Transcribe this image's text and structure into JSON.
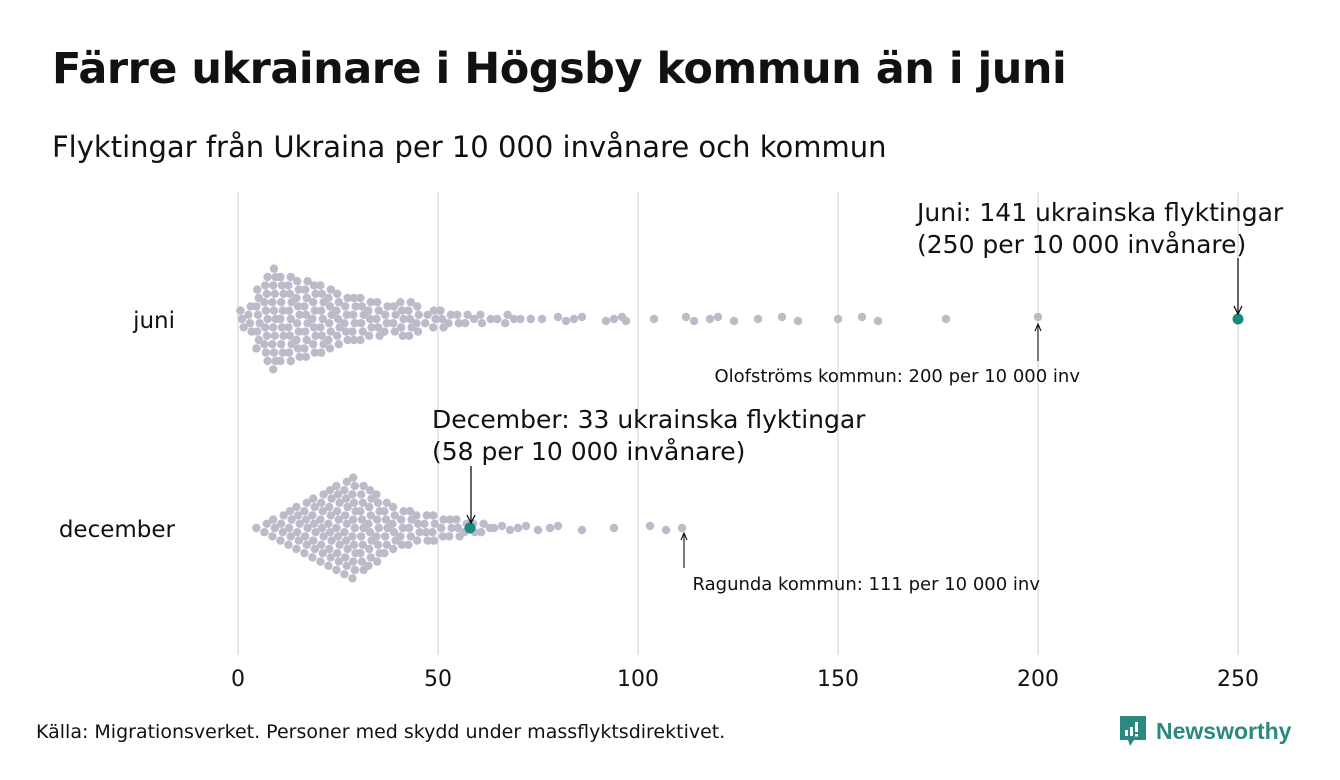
{
  "title": "Färre ukrainare i Högsby kommun än i juni",
  "subtitle": "Flyktingar från Ukraina per 10 000 invånare och kommun",
  "source": "Källa: Migrationsverket. Personer med skydd under massflyktsdirektivet.",
  "logo": "Newsworthy",
  "colors": {
    "dot": "#bdbbc9",
    "highlight": "#1a8a80",
    "grid": "#d0d0d0"
  },
  "chart_data": {
    "type": "scatter",
    "subtype": "beeswarm",
    "xlim": [
      0,
      250
    ],
    "xticks": [
      0,
      50,
      100,
      150,
      200,
      250
    ],
    "categories": [
      "juni",
      "december"
    ],
    "series": [
      {
        "name": "juni",
        "bin_width": 2,
        "bin_start": 0,
        "bin_counts": [
          3,
          4,
          8,
          11,
          13,
          11,
          11,
          10,
          10,
          9,
          9,
          8,
          7,
          6,
          6,
          6,
          5,
          5,
          4,
          4,
          5,
          5,
          4,
          2,
          3,
          3,
          2,
          2,
          2,
          1,
          2,
          1,
          1,
          2,
          1,
          1,
          1
        ],
        "tail_values": [
          76,
          80,
          82,
          84,
          86,
          92,
          94,
          96,
          97,
          104,
          112,
          114,
          118,
          120,
          124,
          130,
          136,
          140,
          150,
          156,
          160,
          177,
          200
        ],
        "highlight": 250
      },
      {
        "name": "december",
        "bin_width": 2,
        "bin_start": 4,
        "bin_counts": [
          1,
          2,
          3,
          4,
          5,
          6,
          7,
          8,
          9,
          10,
          11,
          12,
          13,
          11,
          10,
          9,
          7,
          6,
          5,
          5,
          4,
          4,
          4,
          3,
          3,
          3,
          2,
          2,
          2,
          1
        ],
        "tail_values": [
          64,
          66,
          68,
          70,
          72,
          75,
          78,
          80,
          86,
          94,
          103,
          107,
          111
        ],
        "highlight": 58
      }
    ],
    "annotations": {
      "juni_l1": "Juni: 141 ukrainska flyktingar",
      "juni_l2": "(250 per 10 000 invånare)",
      "olof": "Olofströms kommun: 200 per 10 000 inv",
      "dec_l1": "December:  33 ukrainska flyktingar",
      "dec_l2": "(58 per 10 000 invånare)",
      "ragunda": "Ragunda kommun: 111 per 10 000 inv"
    }
  }
}
